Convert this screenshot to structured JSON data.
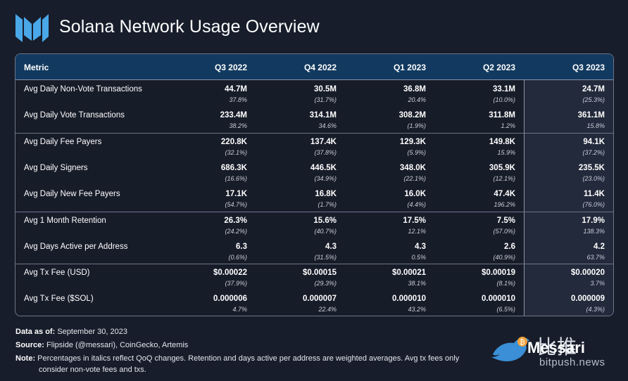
{
  "header": {
    "title": "Solana Network Usage Overview"
  },
  "table": {
    "columns": [
      "Metric",
      "Q3 2022",
      "Q4 2022",
      "Q1 2023",
      "Q2 2023",
      "Q3 2023"
    ],
    "rows": [
      {
        "name": "Avg Daily Non-Vote Transactions",
        "values": [
          "44.7M",
          "30.5M",
          "36.8M",
          "33.1M",
          "24.7M"
        ],
        "changes": [
          "37.8%",
          "(31.7%)",
          "20.4%",
          "(10.0%)",
          "(25.3%)"
        ]
      },
      {
        "name": "Avg Daily Vote Transactions",
        "values": [
          "233.4M",
          "314.1M",
          "308.2M",
          "311.8M",
          "361.1M"
        ],
        "changes": [
          "38.2%",
          "34.6%",
          "(1.9%)",
          "1.2%",
          "15.8%"
        ]
      },
      {
        "name": "Avg Daily Fee Payers",
        "values": [
          "220.8K",
          "137.4K",
          "129.3K",
          "149.8K",
          "94.1K"
        ],
        "changes": [
          "(32.1%)",
          "(37.8%)",
          "(5.9%)",
          "15.9%",
          "(37.2%)"
        ]
      },
      {
        "name": "Avg Daily Signers",
        "values": [
          "686.3K",
          "446.5K",
          "348.0K",
          "305.9K",
          "235.5K"
        ],
        "changes": [
          "(16.6%)",
          "(34.9%)",
          "(22.1%)",
          "(12.1%)",
          "(23.0%)"
        ]
      },
      {
        "name": "Avg Daily New Fee Payers",
        "values": [
          "17.1K",
          "16.8K",
          "16.0K",
          "47.4K",
          "11.4K"
        ],
        "changes": [
          "(54.7%)",
          "(1.7%)",
          "(4.4%)",
          "196.2%",
          "(76.0%)"
        ]
      },
      {
        "name": "Avg 1 Month Retention",
        "values": [
          "26.3%",
          "15.6%",
          "17.5%",
          "7.5%",
          "17.9%"
        ],
        "changes": [
          "(24.2%)",
          "(40.7%)",
          "12.1%",
          "(57.0%)",
          "138.3%"
        ]
      },
      {
        "name": "Avg Days Active per Address",
        "values": [
          "6.3",
          "4.3",
          "4.3",
          "2.6",
          "4.2"
        ],
        "changes": [
          "(0.6%)",
          "(31.5%)",
          "0.5%",
          "(40.9%)",
          "63.7%"
        ]
      },
      {
        "name": "Avg Tx Fee (USD)",
        "values": [
          "$0.00022",
          "$0.00015",
          "$0.00021",
          "$0.00019",
          "$0.00020"
        ],
        "changes": [
          "(37.9%)",
          "(29.3%)",
          "38.1%",
          "(8.1%)",
          "3.7%"
        ]
      },
      {
        "name": "Avg Tx Fee ($SOL)",
        "values": [
          "0.000006",
          "0.000007",
          "0.000010",
          "0.000010",
          "0.000009"
        ],
        "changes": [
          "4.7%",
          "22.4%",
          "43.2%",
          "(6.5%)",
          "(4.3%)"
        ]
      }
    ]
  },
  "footer": {
    "date_label": "Data as of:",
    "date_value": "September 30, 2023",
    "source_label": "Source:",
    "source_value": "Flipside (@messari), CoinGecko, Artemis",
    "note_label": "Note:",
    "note_line1": "Percentages in italics reflect QoQ changes. Retention and days active per address are weighted averages. Avg tx fees only",
    "note_line2": "consider non-vote fees and txs."
  },
  "watermark": {
    "cn": "比推",
    "brand": "Messari",
    "url": "bitpush.news"
  },
  "colors": {
    "background": "#181d2b",
    "header_band": "#12395f",
    "highlight_column": "#232a3b",
    "logo": "#4aa8e8"
  }
}
